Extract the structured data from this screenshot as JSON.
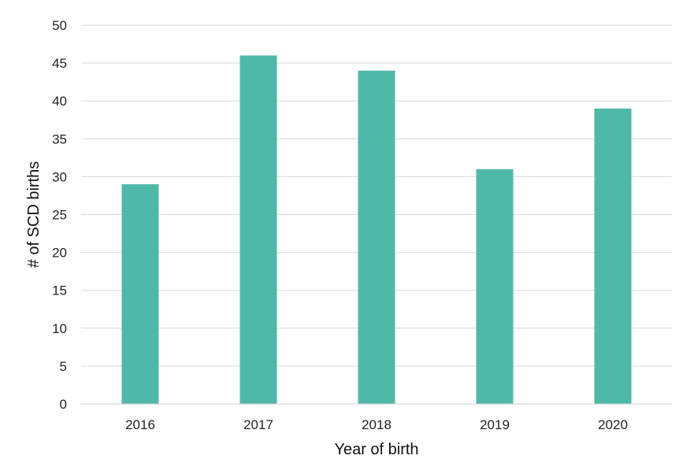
{
  "chart_data": {
    "type": "bar",
    "title": "",
    "xlabel": "Year of birth",
    "ylabel": "# of SCD births",
    "categories": [
      "2016",
      "2017",
      "2018",
      "2019",
      "2020"
    ],
    "series": [
      {
        "values": [
          29,
          46,
          44,
          31,
          39
        ]
      }
    ],
    "ylim": [
      0,
      50
    ],
    "yticks": [
      0,
      5,
      10,
      15,
      20,
      25,
      30,
      35,
      40,
      45,
      50
    ],
    "ytick_labels": [
      "0",
      "5",
      "10",
      "15",
      "20",
      "25",
      "30",
      "35",
      "40",
      "45",
      "50"
    ],
    "grid": true,
    "legend": "none",
    "bar_color": "#4fb9a9"
  }
}
